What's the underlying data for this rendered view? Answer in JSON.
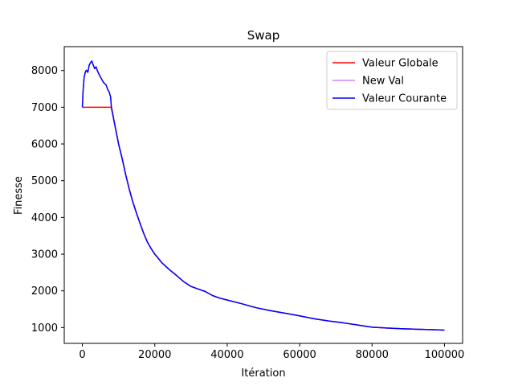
{
  "chart_data": {
    "type": "line",
    "title": "Swap",
    "xlabel": "Itération",
    "ylabel": "Finesse",
    "xlim": [
      -5000,
      105000
    ],
    "ylim": [
      570,
      8650
    ],
    "xticks": [
      0,
      20000,
      40000,
      60000,
      80000,
      100000
    ],
    "xtick_labels": [
      "0",
      "20000",
      "40000",
      "60000",
      "80000",
      "100000"
    ],
    "yticks": [
      1000,
      2000,
      3000,
      4000,
      5000,
      6000,
      7000,
      8000
    ],
    "ytick_labels": [
      "1000",
      "2000",
      "3000",
      "4000",
      "5000",
      "6000",
      "7000",
      "8000"
    ],
    "grid": false,
    "legend_position": "top-right",
    "series": [
      {
        "name": "Valeur Globale",
        "color": "#ff0000",
        "x": [
          0,
          7900,
          8000,
          9000,
          10000,
          11000,
          12000,
          13000,
          14000,
          15000,
          16000,
          17000,
          18000,
          19000,
          20000,
          22000,
          24000,
          26000,
          28000,
          30000,
          32000,
          34000,
          36000,
          38000,
          40000,
          44000,
          48000,
          52000,
          56000,
          60000,
          64000,
          68000,
          72000,
          76000,
          80000,
          84000,
          88000,
          92000,
          96000,
          100000
        ],
        "y": [
          7000,
          7000,
          6980,
          6500,
          6000,
          5600,
          5150,
          4750,
          4400,
          4100,
          3820,
          3550,
          3320,
          3150,
          3000,
          2760,
          2580,
          2420,
          2250,
          2120,
          2050,
          1980,
          1870,
          1800,
          1750,
          1650,
          1540,
          1460,
          1390,
          1320,
          1240,
          1180,
          1130,
          1070,
          1010,
          990,
          970,
          955,
          945,
          930
        ]
      },
      {
        "name": "New Val",
        "color": "#cc88ff",
        "x": [
          0,
          200,
          500,
          800,
          1100,
          1500,
          1900,
          2300,
          2600,
          3000,
          3400,
          3800,
          4200,
          4600,
          5000,
          5400,
          5800,
          6200,
          6600,
          7000,
          7400,
          7800,
          8000,
          9000,
          10000,
          11000,
          12000,
          13000,
          14000,
          15000,
          16000,
          17000,
          18000,
          19000,
          20000,
          22000,
          24000,
          26000,
          28000,
          30000,
          32000,
          34000,
          36000,
          38000,
          40000,
          44000,
          48000,
          52000,
          56000,
          60000,
          64000,
          68000,
          72000,
          76000,
          80000,
          84000,
          88000,
          92000,
          96000,
          100000
        ],
        "y": [
          7000,
          7450,
          7820,
          7950,
          8010,
          7950,
          8150,
          8220,
          8260,
          8150,
          8050,
          8100,
          7980,
          7900,
          7820,
          7750,
          7680,
          7640,
          7600,
          7480,
          7420,
          7280,
          7020,
          6500,
          6000,
          5600,
          5150,
          4750,
          4400,
          4100,
          3820,
          3550,
          3320,
          3150,
          3000,
          2760,
          2580,
          2420,
          2250,
          2120,
          2050,
          1980,
          1870,
          1800,
          1750,
          1650,
          1540,
          1460,
          1390,
          1320,
          1240,
          1180,
          1130,
          1070,
          1010,
          990,
          970,
          955,
          945,
          930
        ]
      },
      {
        "name": "Valeur Courante",
        "color": "#0000ff",
        "x": [
          0,
          200,
          500,
          800,
          1100,
          1500,
          1900,
          2300,
          2600,
          3000,
          3400,
          3800,
          4200,
          4600,
          5000,
          5400,
          5800,
          6200,
          6600,
          7000,
          7400,
          7800,
          8000,
          9000,
          10000,
          11000,
          12000,
          13000,
          14000,
          15000,
          16000,
          17000,
          18000,
          19000,
          20000,
          22000,
          24000,
          26000,
          28000,
          30000,
          32000,
          34000,
          36000,
          38000,
          40000,
          44000,
          48000,
          52000,
          56000,
          60000,
          64000,
          68000,
          72000,
          76000,
          80000,
          84000,
          88000,
          92000,
          96000,
          100000
        ],
        "y": [
          7000,
          7450,
          7820,
          7950,
          8010,
          7950,
          8150,
          8220,
          8260,
          8150,
          8050,
          8100,
          7980,
          7900,
          7820,
          7750,
          7680,
          7640,
          7600,
          7480,
          7420,
          7280,
          7020,
          6500,
          6000,
          5600,
          5150,
          4750,
          4400,
          4100,
          3820,
          3550,
          3320,
          3150,
          3000,
          2760,
          2580,
          2420,
          2250,
          2120,
          2050,
          1980,
          1870,
          1800,
          1750,
          1650,
          1540,
          1460,
          1390,
          1320,
          1240,
          1180,
          1130,
          1070,
          1010,
          990,
          970,
          955,
          945,
          930
        ]
      }
    ]
  }
}
